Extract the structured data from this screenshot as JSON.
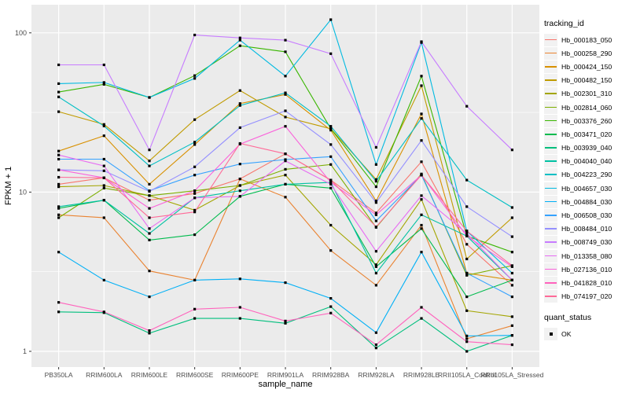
{
  "chart_data": {
    "type": "line",
    "title": "",
    "xlabel": "sample_name",
    "ylabel": "FPKM + 1",
    "yscale": "log10",
    "ylim": [
      0.85,
      150
    ],
    "grid": true,
    "panel_bg": "#EBEBEB",
    "grid_color": "#FFFFFF",
    "point_color": "#000000",
    "axis_text_color": "#4D4D4D",
    "tick_mark_color": "#333333",
    "yticks": [
      {
        "label": "100",
        "value": 100
      },
      {
        "label": "10",
        "value": 10
      },
      {
        "label": "1",
        "value": 1
      }
    ],
    "y_minor_breaks": [
      3.1623,
      31.623
    ],
    "categories": [
      "PB350LA",
      "RRIM600LA",
      "RRIM600LE",
      "RRIM600SE",
      "RRIM600PE",
      "RRIM901LA",
      "RRIM928BA",
      "RRIM928LA",
      "RRIM928LE",
      "RRII105LA_Control",
      "RRII105LA_Stressed"
    ],
    "legend": {
      "title": "tracking_id",
      "position": "right"
    },
    "legend2": {
      "title": "quant_status",
      "items": [
        {
          "label": "OK",
          "marker": "black-square"
        }
      ]
    },
    "series": [
      {
        "name": "Hb_000183_050",
        "color": "#F8766D",
        "values": [
          11.2,
          12.3,
          8.9,
          9.8,
          12.1,
          17.4,
          11.9,
          7.4,
          15.5,
          4.7,
          2.6
        ]
      },
      {
        "name": "Hb_000258_290",
        "color": "#EA8331",
        "values": [
          7.2,
          6.9,
          3.2,
          2.8,
          12.1,
          9.3,
          4.3,
          2.6,
          6.2,
          1.2,
          1.45
        ]
      },
      {
        "name": "Hb_000424_150",
        "color": "#D89000",
        "values": [
          18.1,
          22.6,
          11.2,
          19.9,
          36,
          41,
          24.5,
          8.8,
          31,
          3.1,
          2.8
        ]
      },
      {
        "name": "Hb_000482_150",
        "color": "#C09B00",
        "values": [
          32,
          26.6,
          15.7,
          28.5,
          43.4,
          29.6,
          25,
          12,
          46.6,
          3.8,
          6.9
        ]
      },
      {
        "name": "Hb_002301_310",
        "color": "#A3A500",
        "values": [
          10.8,
          11.0,
          9.5,
          7.7,
          11.0,
          12.8,
          6.2,
          3.5,
          9.0,
          1.8,
          1.65
        ]
      },
      {
        "name": "Hb_002814_060",
        "color": "#7CAE00",
        "values": [
          6.9,
          10.6,
          9.5,
          10.2,
          11.0,
          13.9,
          14.9,
          6.0,
          13.0,
          3.0,
          3.45
        ]
      },
      {
        "name": "Hb_003376_260",
        "color": "#39B600",
        "values": [
          42.5,
          47.5,
          39.3,
          53.9,
          83,
          76,
          25,
          10.8,
          53.5,
          5.3,
          4.2
        ]
      },
      {
        "name": "Hb_003471_020",
        "color": "#00BB4E",
        "values": [
          7.9,
          8.9,
          5.0,
          5.4,
          9.4,
          11.2,
          10.6,
          3.4,
          5.9,
          2.2,
          2.8
        ]
      },
      {
        "name": "Hb_003939_040",
        "color": "#00BF7D",
        "values": [
          1.77,
          1.75,
          1.3,
          1.61,
          1.61,
          1.5,
          1.91,
          1.05,
          1.61,
          1.0,
          1.26
        ]
      },
      {
        "name": "Hb_004040_040",
        "color": "#00C1A3",
        "values": [
          8.1,
          8.9,
          5.5,
          9.2,
          10.2,
          11.2,
          11.5,
          3.1,
          7.2,
          5.3,
          2.8
        ]
      },
      {
        "name": "Hb_004223_290",
        "color": "#00BFC4",
        "values": [
          39.6,
          26,
          14.6,
          20.6,
          35,
          42,
          25.9,
          11.7,
          29,
          11.9,
          8.0
        ]
      },
      {
        "name": "Hb_004657_030",
        "color": "#00BAE0",
        "values": [
          48,
          48.8,
          39.3,
          51.7,
          90,
          53.5,
          121,
          14.9,
          87,
          5.7,
          3.1
        ]
      },
      {
        "name": "Hb_004884_030",
        "color": "#00B0F6",
        "values": [
          4.2,
          2.8,
          2.2,
          2.8,
          2.85,
          2.7,
          2.15,
          1.31,
          4.2,
          1.25,
          1.26
        ]
      },
      {
        "name": "Hb_006508_030",
        "color": "#35A2FF",
        "values": [
          16.1,
          16.1,
          10.2,
          12.8,
          15.0,
          16.0,
          16.7,
          6.6,
          12.8,
          3.1,
          2.2
        ]
      },
      {
        "name": "Hb_008484_010",
        "color": "#9590FF",
        "values": [
          13.8,
          13.6,
          10.1,
          14.4,
          25.4,
          32.4,
          19.9,
          8.6,
          21.1,
          8.1,
          5.25
        ]
      },
      {
        "name": "Hb_008749_030",
        "color": "#C77CFF",
        "values": [
          63,
          63,
          18.4,
          97,
          93,
          90,
          74,
          19.1,
          88,
          34.6,
          18.4
        ]
      },
      {
        "name": "Hb_013358_080",
        "color": "#E76BF3",
        "values": [
          17.1,
          14.6,
          5.9,
          9.2,
          9.4,
          15.7,
          11.2,
          4.25,
          9.5,
          5.5,
          2.8
        ]
      },
      {
        "name": "Hb_027136_010",
        "color": "#FA62DB",
        "values": [
          13.8,
          12.3,
          7.9,
          10.2,
          20.0,
          25.9,
          11.5,
          7.2,
          12.8,
          5.3,
          3.4
        ]
      },
      {
        "name": "Hb_041828_010",
        "color": "#FF62BC",
        "values": [
          2.03,
          1.77,
          1.35,
          1.84,
          1.89,
          1.55,
          1.74,
          1.1,
          1.89,
          1.15,
          1.1
        ]
      },
      {
        "name": "Hb_074197_020",
        "color": "#FF6A98",
        "values": [
          12.4,
          12.3,
          6.9,
          7.5,
          20.2,
          17.4,
          11.9,
          6.05,
          12.8,
          5.7,
          3.45
        ]
      }
    ]
  }
}
